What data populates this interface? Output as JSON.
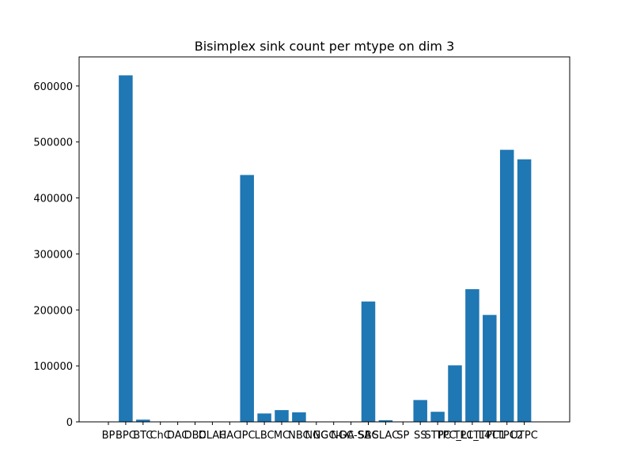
{
  "chart_data": {
    "type": "bar",
    "title": "Bisimplex sink count per mtype on dim 3",
    "xlabel": "",
    "ylabel": "",
    "color": "#1f77b4",
    "categories": [
      "BP",
      "BPC",
      "BTC",
      "ChC",
      "DAC",
      "DBC",
      "DLAC",
      "HAC",
      "IPC",
      "LBC",
      "MC",
      "NBC",
      "NGC",
      "NGC-DA",
      "NGC-SA",
      "SBC",
      "SLAC",
      "SP",
      "SS",
      "STPC",
      "TPC_L1",
      "TPC_L4",
      "TTPC1",
      "TTPC2",
      "UTPC"
    ],
    "values": [
      0,
      619000,
      4000,
      0,
      0,
      0,
      0,
      0,
      441000,
      15000,
      21000,
      17000,
      0,
      0,
      0,
      215000,
      3000,
      0,
      39000,
      18000,
      101000,
      237000,
      191000,
      486000,
      469000
    ],
    "ylim": [
      0,
      650000
    ],
    "yticks": [
      0,
      100000,
      200000,
      300000,
      400000,
      500000,
      600000
    ],
    "ytick_labels": [
      "0",
      "100000",
      "200000",
      "300000",
      "400000",
      "500000",
      "600000"
    ],
    "grid": false
  }
}
